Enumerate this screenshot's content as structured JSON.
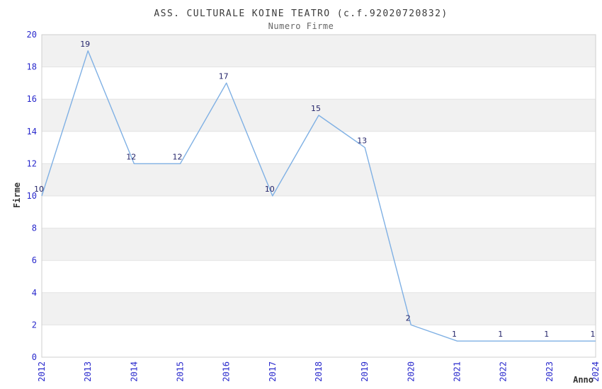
{
  "chart_data": {
    "type": "line",
    "title": "ASS. CULTURALE KOINE TEATRO (c.f.92020720832)",
    "subtitle": "Numero Firme",
    "xlabel": "Anno",
    "ylabel": "Firme",
    "categories": [
      "2012",
      "2013",
      "2014",
      "2015",
      "2016",
      "2017",
      "2018",
      "2019",
      "2020",
      "2021",
      "2022",
      "2023",
      "2024"
    ],
    "values": [
      10,
      19,
      12,
      12,
      17,
      10,
      15,
      13,
      2,
      1,
      1,
      1,
      1
    ],
    "ylim": [
      0,
      20
    ],
    "ytick_step": 2,
    "xtick_rotation": -90,
    "grid": "horizontal-bands",
    "legend": "none",
    "point_labels_visible": true,
    "colors": {
      "line": "#7fb0e4",
      "tick_labels": "#2929cc",
      "data_labels": "#24246a",
      "title": "#3a3a3a",
      "subtitle": "#666666",
      "band": "#f1f1f1",
      "gridline": "#e3e3e3",
      "plot_border": "#cfcfcf",
      "background": "#ffffff"
    }
  }
}
